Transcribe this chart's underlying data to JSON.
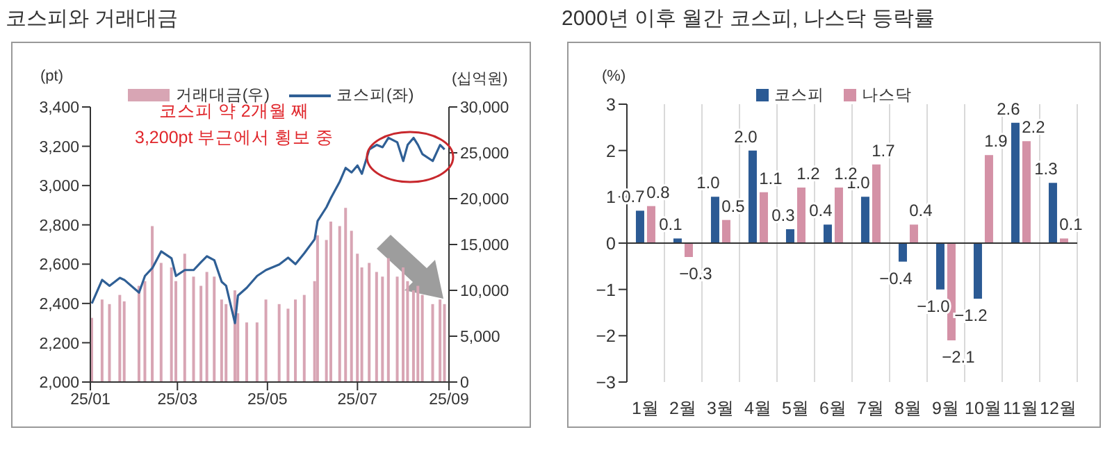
{
  "chart_data": [
    {
      "type": "line",
      "title": "코스피와 거래대금",
      "ylabel": "(pt)",
      "y2label": "(십억원)",
      "legend": "top",
      "annotations": [
        "코스피  약 2개월 째\n3,200pt 부근에서 횡보 중"
      ],
      "x": [
        "--01-02",
        "--01-09",
        "--01-14",
        "--01-21",
        "--01-24",
        "--02-03",
        "--02-07",
        "--02-12",
        "--02-18",
        "--02-25",
        "--02-28",
        "--03-06",
        "--03-12",
        "--03-17",
        "--03-21",
        "--03-26",
        "--03-31",
        "--04-03",
        "--04-09",
        "--04-11",
        "--04-17",
        "--04-24",
        "--04-30",
        "--05-09",
        "--05-15",
        "--05-20",
        "--05-26",
        "--06-02",
        "--06-04",
        "--06-10",
        "--06-13",
        "--06-19",
        "--06-23",
        "--06-27",
        "--07-01",
        "--07-04",
        "--07-09",
        "--07-14",
        "--07-18",
        "--07-22",
        "--07-28",
        "--08-01",
        "--08-04",
        "--08-08",
        "--08-11",
        "--08-14",
        "--08-21",
        "--08-26",
        "--08-29"
      ],
      "series": [
        {
          "name": "거래대금(우)",
          "type": "bar",
          "axis": "y2",
          "color": "#d8a5b4",
          "values": [
            7000,
            9000,
            8500,
            9500,
            8800,
            10500,
            11000,
            17000,
            13000,
            12500,
            11000,
            14000,
            11500,
            10500,
            12000,
            11500,
            9000,
            8500,
            10000,
            7500,
            6500,
            6500,
            9000,
            8500,
            8000,
            9000,
            9500,
            11000,
            16000,
            15500,
            17500,
            17000,
            19000,
            16500,
            14000,
            12500,
            13000,
            12000,
            11500,
            13500,
            11500,
            12500,
            11000,
            10000,
            10500,
            9500,
            8500,
            9000,
            8500
          ]
        },
        {
          "name": "코스피(좌)",
          "type": "line",
          "color": "#2f5f95",
          "values": [
            2400,
            2520,
            2490,
            2530,
            2520,
            2455,
            2540,
            2580,
            2665,
            2630,
            2540,
            2570,
            2570,
            2610,
            2640,
            2620,
            2510,
            2490,
            2300,
            2440,
            2480,
            2540,
            2570,
            2598,
            2633,
            2600,
            2656,
            2727,
            2820,
            2890,
            2937,
            3020,
            3090,
            3067,
            3102,
            3060,
            3184,
            3207,
            3195,
            3243,
            3220,
            3125,
            3207,
            3243,
            3207,
            3160,
            3125,
            3207,
            3184
          ]
        }
      ],
      "xlim": [
        "--01-01",
        "--09-01"
      ],
      "xticks": [
        {
          "value": "--01-01",
          "label": "25/01"
        },
        {
          "value": "--03-01",
          "label": "25/03"
        },
        {
          "value": "--05-01",
          "label": "25/05"
        },
        {
          "value": "--07-01",
          "label": "25/07"
        },
        {
          "value": "--09-01",
          "label": "25/09"
        }
      ],
      "ylim": [
        2000,
        3400
      ],
      "yticks": [
        {
          "value": 2000,
          "label": "2,000"
        },
        {
          "value": 2200,
          "label": "2,200"
        },
        {
          "value": 2400,
          "label": "2,400"
        },
        {
          "value": 2600,
          "label": "2,600"
        },
        {
          "value": 2800,
          "label": "2,800"
        },
        {
          "value": 3000,
          "label": "3,000"
        },
        {
          "value": 3200,
          "label": "3,200"
        },
        {
          "value": 3400,
          "label": "3,400"
        }
      ],
      "y2lim": [
        0,
        30000
      ],
      "y2ticks": [
        0,
        {
          "value": 5000,
          "label": "5,000"
        },
        {
          "value": 10000,
          "label": "10,000"
        },
        {
          "value": 15000,
          "label": "15,000"
        },
        {
          "value": 20000,
          "label": "20,000"
        },
        {
          "value": 25000,
          "label": "25,000"
        },
        {
          "value": 30000,
          "label": "30,000"
        }
      ]
    },
    {
      "type": "bar",
      "title": "2000년 이후 월간 코스피, 나스닥 등락률",
      "ylabel": "(%)",
      "legend": "top",
      "grid": "x",
      "categories": [
        "1월",
        "2월",
        "3월",
        "4월",
        "5월",
        "6월",
        "7월",
        "8월",
        "9월",
        "10월",
        "11월",
        "12월"
      ],
      "series": [
        {
          "name": "코스피",
          "color": "#2b5a94",
          "values": [
            0.7,
            0.1,
            1.0,
            2.0,
            0.3,
            0.4,
            1.0,
            -0.4,
            -1.0,
            -1.2,
            2.6,
            1.3
          ],
          "value_labels": [
            "0.7",
            "0.1",
            "1.0",
            "2.0",
            "0.3",
            "0.4",
            "1.0",
            "−0.4",
            "−1.0",
            "−1.2",
            "2.6",
            "1.3"
          ]
        },
        {
          "name": "나스닥",
          "color": "#d491a6",
          "values": [
            0.8,
            -0.3,
            0.5,
            1.1,
            1.2,
            1.2,
            1.7,
            0.4,
            -2.1,
            1.9,
            2.2,
            0.1
          ],
          "value_labels": [
            "0.8",
            "−0.3",
            "0.5",
            "1.1",
            "1.2",
            "1.2",
            "1.7",
            "0.4",
            "−2.1",
            "1.9",
            "2.2",
            "0.1"
          ]
        }
      ],
      "ylim": [
        -3,
        3
      ],
      "yticks": [
        {
          "value": -3,
          "label": "−3"
        },
        {
          "value": -2,
          "label": "−2"
        },
        {
          "value": -1,
          "label": "−1"
        },
        0,
        1,
        2,
        3
      ]
    }
  ]
}
